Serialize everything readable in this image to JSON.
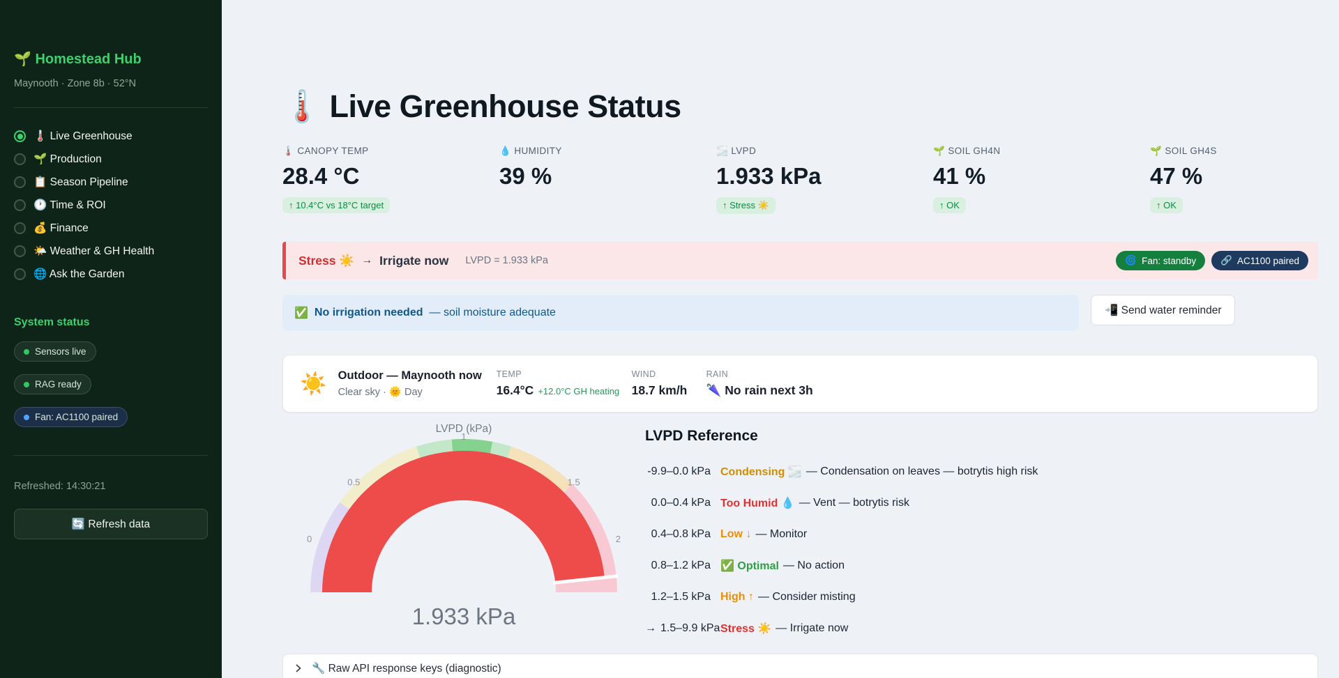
{
  "sidebar": {
    "app_title": "🌱 Homestead Hub",
    "subtitle": "Maynooth · Zone 8b · 52°N",
    "nav": [
      {
        "label": "🌡️ Live Greenhouse",
        "selected": true
      },
      {
        "label": "🌱 Production",
        "selected": false
      },
      {
        "label": "📋 Season Pipeline",
        "selected": false
      },
      {
        "label": "🕐 Time & ROI",
        "selected": false
      },
      {
        "label": "💰 Finance",
        "selected": false
      },
      {
        "label": "🌤️ Weather & GH Health",
        "selected": false
      },
      {
        "label": "🌐 Ask the Garden",
        "selected": false
      }
    ],
    "system_status_title": "System status",
    "status_pills": [
      {
        "label": "Sensors live",
        "dot_color": "#2fca5f",
        "bg": "#1a3326"
      },
      {
        "label": "RAG ready",
        "dot_color": "#2fca5f",
        "bg": "#1a3326"
      },
      {
        "label": "Fan: AC1100 paired",
        "dot_color": "#4da3ff",
        "bg": "#1b2f49"
      }
    ],
    "refreshed": "Refreshed: 14:30:21",
    "refresh_button": "🔄 Refresh data"
  },
  "main": {
    "page_title": "🌡️ Live Greenhouse Status",
    "metrics": [
      {
        "label": "🌡️ CANOPY TEMP",
        "value": "28.4 °C",
        "delta": "↑ 10.4°C vs 18°C target"
      },
      {
        "label": "💧 HUMIDITY",
        "value": "39 %",
        "delta": ""
      },
      {
        "label": "🌫️ LVPD",
        "value": "1.933 kPa",
        "delta": "↑ Stress ☀️"
      },
      {
        "label": "🌱 SOIL GH4N",
        "value": "41 %",
        "delta": "↑ OK"
      },
      {
        "label": "🌱 SOIL GH4S",
        "value": "47 %",
        "delta": "↑ OK"
      }
    ],
    "alert": {
      "status": "Stress ☀️",
      "status_color": "#d03030",
      "arrow": "→",
      "action": "Irrigate now",
      "detail": "LVPD = 1.933 kPa",
      "pills": [
        {
          "icon": "🌀",
          "label": "Fan: standby",
          "bg": "#15803d"
        },
        {
          "icon": "🔗",
          "label": "AC1100 paired",
          "bg": "#1e3a5f"
        }
      ]
    },
    "info": {
      "icon": "✅",
      "bold": "No irrigation needed",
      "rest": "— soil moisture adequate",
      "button": "📲 Send water reminder"
    },
    "weather": {
      "icon": "☀️",
      "title": "Outdoor — Maynooth now",
      "subtitle": "Clear sky · 🌞 Day",
      "temp_label": "TEMP",
      "temp_value": "16.4°C",
      "temp_delta": "+12.0°C GH heating",
      "wind_label": "WIND",
      "wind_value": "18.7 km/h",
      "rain_label": "RAIN",
      "rain_value": "🌂 No rain next 3h"
    },
    "gauge": {
      "type": "gauge",
      "title": "LVPD (kPa)",
      "min": 0,
      "max": 2,
      "value": 1.933,
      "value_label": "1.933 kPa",
      "threshold": 1.933,
      "bar_color": "#ee4b4b",
      "ticks": [
        0,
        0.5,
        1,
        1.5,
        2
      ],
      "tick_labels": [
        "0",
        "0.5",
        "1",
        "1.5",
        "2"
      ],
      "steps": [
        {
          "from": 0,
          "to": 0.4,
          "color": "#ded7f3"
        },
        {
          "from": 0.4,
          "to": 0.8,
          "color": "#f2edca"
        },
        {
          "from": 0.8,
          "to": 0.95,
          "color": "#c2e8c9"
        },
        {
          "from": 0.95,
          "to": 1.12,
          "color": "#85d18e"
        },
        {
          "from": 1.12,
          "to": 1.2,
          "color": "#c2e8c9"
        },
        {
          "from": 1.2,
          "to": 1.5,
          "color": "#f5e2ba"
        },
        {
          "from": 1.5,
          "to": 2,
          "color": "#f8c9d2"
        }
      ]
    },
    "reference": {
      "title": "LVPD Reference",
      "rows": [
        {
          "marker": "",
          "range": "-9.9–0.0 kPa",
          "status": "Condensing 🌫️",
          "status_color": "#d18f00",
          "desc": "— Condensation on leaves — botrytis high risk"
        },
        {
          "marker": "",
          "range": "0.0–0.4 kPa",
          "status": "Too Humid 💧",
          "status_color": "#e03131",
          "desc": "— Vent — botrytis risk"
        },
        {
          "marker": "",
          "range": "0.4–0.8 kPa",
          "status": "Low ↓",
          "status_color": "#f08c00",
          "desc": "— Monitor"
        },
        {
          "marker": "",
          "range": "0.8–1.2 kPa",
          "status": "✅ Optimal",
          "status_color": "#2f9e44",
          "desc": "— No action"
        },
        {
          "marker": "",
          "range": "1.2–1.5 kPa",
          "status": "High ↑",
          "status_color": "#f08c00",
          "desc": "— Consider misting"
        },
        {
          "marker": "→",
          "range": "1.5–9.9 kPa",
          "status": "Stress ☀️",
          "status_color": "#e03131",
          "desc": "— Irrigate now"
        }
      ]
    },
    "expander_label": "🔧 Raw API response keys (diagnostic)"
  }
}
